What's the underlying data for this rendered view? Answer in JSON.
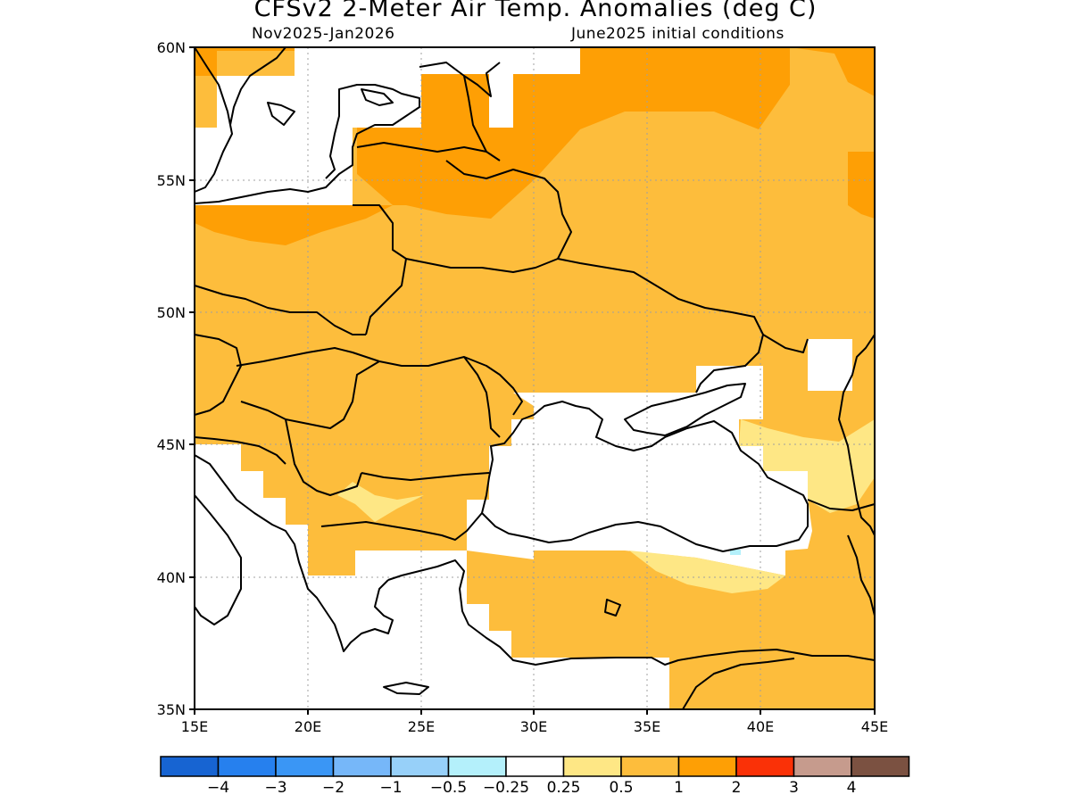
{
  "title": "CFSv2 2-Meter Air Temp. Anomalies (deg C)",
  "period": "Nov2025-Jan2026",
  "initial_conditions": "June2025 initial conditions",
  "map": {
    "lon_range": [
      15,
      45
    ],
    "lat_range": [
      35,
      60
    ],
    "lon_ticks": [
      "15E",
      "20E",
      "25E",
      "30E",
      "35E",
      "40E",
      "45E"
    ],
    "lat_ticks": [
      "35N",
      "40N",
      "45N",
      "50N",
      "55N",
      "60N"
    ],
    "grid": true,
    "colors": {
      "white": "#ffffff",
      "light_yellow": "#fee785",
      "light_orange": "#fdbd3c",
      "orange": "#fe9f05",
      "red": "#fa3107"
    }
  },
  "colorbar": {
    "colors": [
      "#1764d2",
      "#2680ee",
      "#3a96f5",
      "#76b7f9",
      "#97d0f9",
      "#b4f0fb",
      "#ffffff",
      "#fee785",
      "#fdbd3c",
      "#fe9f05",
      "#fa3107",
      "#c69b8d",
      "#7b5141"
    ],
    "labels": [
      "−4",
      "−3",
      "−2",
      "−1",
      "−0.5",
      "−0.25",
      "0.25",
      "0.5",
      "1",
      "2",
      "3",
      "4"
    ]
  }
}
